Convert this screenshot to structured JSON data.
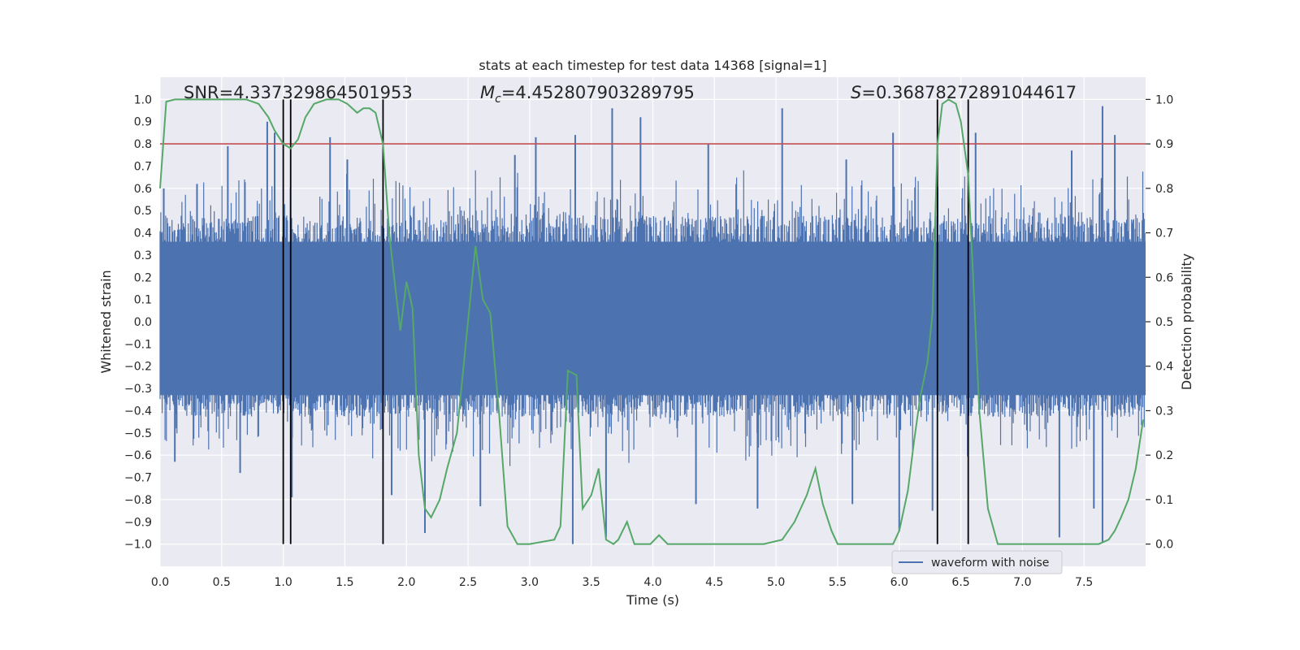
{
  "chart_data": {
    "type": "line",
    "title": "stats at each timestep for test data 14368 [signal=1]",
    "xlabel": "Time (s)",
    "ylabel": "Whitened strain",
    "ylabel_right": "Detection probability",
    "xlim": [
      0.0,
      8.0
    ],
    "ylim": [
      -1.1,
      1.1
    ],
    "ylim_right": [
      -0.05,
      1.05
    ],
    "x_ticks": [
      "0.0",
      "0.5",
      "1.0",
      "1.5",
      "2.0",
      "2.5",
      "3.0",
      "3.5",
      "4.0",
      "4.5",
      "5.0",
      "5.5",
      "6.0",
      "6.5",
      "7.0",
      "7.5"
    ],
    "y_ticks": [
      "1.0",
      "0.9",
      "0.8",
      "0.7",
      "0.6",
      "0.5",
      "0.4",
      "0.3",
      "0.2",
      "0.1",
      "0.0",
      "-0.1",
      "-0.2",
      "-0.3",
      "-0.4",
      "-0.5",
      "-0.6",
      "-0.7",
      "-0.8",
      "-0.9",
      "-1.0"
    ],
    "y_ticks_right": [
      "1.0",
      "0.9",
      "0.8",
      "0.7",
      "0.6",
      "0.5",
      "0.4",
      "0.3",
      "0.2",
      "0.1",
      "0.0"
    ],
    "grid": true,
    "legend": {
      "placement": "lower-right",
      "entries": [
        {
          "label": "waveform with noise",
          "color": "#4c72b0"
        }
      ]
    },
    "annotations": {
      "snr": "SNR=4.337329864501953",
      "mc_symbol": "M",
      "mc_sub": "c",
      "mc_value": "=4.452807903289795",
      "s_symbol": "S",
      "s_value": "=0.36878272891044617"
    },
    "threshold": {
      "value": 0.9,
      "axis": "right",
      "color": "#c44e52"
    },
    "vertical_lines": [
      1.0,
      1.06,
      1.81,
      6.31,
      6.56
    ],
    "waveform": {
      "label": "waveform with noise",
      "color": "#4c72b0",
      "note_core_envelope": [
        -0.35,
        0.4
      ],
      "peaks_up": [
        [
          0.03,
          0.6
        ],
        [
          0.3,
          0.62
        ],
        [
          0.55,
          0.79
        ],
        [
          0.87,
          0.9
        ],
        [
          0.93,
          0.85
        ],
        [
          1.38,
          0.83
        ],
        [
          1.52,
          0.73
        ],
        [
          2.88,
          0.75
        ],
        [
          3.05,
          0.83
        ],
        [
          3.37,
          0.84
        ],
        [
          3.67,
          0.96
        ],
        [
          3.9,
          0.92
        ],
        [
          4.45,
          0.8
        ],
        [
          5.05,
          0.96
        ],
        [
          5.57,
          0.73
        ],
        [
          5.95,
          0.85
        ],
        [
          6.62,
          0.85
        ],
        [
          7.4,
          0.77
        ],
        [
          7.65,
          0.97
        ],
        [
          7.75,
          0.84
        ]
      ],
      "peaks_down": [
        [
          0.12,
          -0.63
        ],
        [
          0.65,
          -0.68
        ],
        [
          1.07,
          -0.79
        ],
        [
          1.88,
          -0.78
        ],
        [
          2.15,
          -0.95
        ],
        [
          2.6,
          -0.83
        ],
        [
          3.35,
          -1.0
        ],
        [
          3.62,
          -0.97
        ],
        [
          4.35,
          -0.82
        ],
        [
          4.85,
          -0.84
        ],
        [
          5.62,
          -0.82
        ],
        [
          6.0,
          -0.94
        ],
        [
          6.27,
          -0.85
        ],
        [
          7.3,
          -0.97
        ],
        [
          7.58,
          -0.84
        ],
        [
          7.65,
          -0.99
        ]
      ]
    },
    "series": [
      {
        "name": "",
        "color": "#55a868",
        "axis": "right",
        "x": [
          0.0,
          0.05,
          0.12,
          0.3,
          0.5,
          0.7,
          0.8,
          0.88,
          0.93,
          1.0,
          1.06,
          1.12,
          1.18,
          1.25,
          1.35,
          1.45,
          1.52,
          1.6,
          1.65,
          1.7,
          1.75,
          1.81,
          1.86,
          1.9,
          1.95,
          2.0,
          2.05,
          2.1,
          2.15,
          2.2,
          2.27,
          2.33,
          2.41,
          2.46,
          2.51,
          2.56,
          2.62,
          2.68,
          2.75,
          2.82,
          2.9,
          3.0,
          3.2,
          3.25,
          3.31,
          3.38,
          3.43,
          3.5,
          3.56,
          3.62,
          3.68,
          3.72,
          3.79,
          3.85,
          3.92,
          3.98,
          4.05,
          4.12,
          4.2,
          4.3,
          4.5,
          4.7,
          4.9,
          5.05,
          5.15,
          5.25,
          5.32,
          5.38,
          5.45,
          5.5,
          5.6,
          5.8,
          5.95,
          6.0,
          6.07,
          6.12,
          6.17,
          6.23,
          6.27,
          6.31,
          6.35,
          6.4,
          6.46,
          6.5,
          6.56,
          6.6,
          6.65,
          6.72,
          6.8,
          6.85,
          6.95,
          7.3,
          7.5,
          7.62,
          7.7,
          7.75,
          7.8,
          7.86,
          7.92,
          7.98
        ],
        "y": [
          0.8,
          0.995,
          1.0,
          1.0,
          1.0,
          1.0,
          0.99,
          0.96,
          0.93,
          0.9,
          0.89,
          0.91,
          0.96,
          0.99,
          1.0,
          1.0,
          0.99,
          0.97,
          0.98,
          0.98,
          0.97,
          0.9,
          0.7,
          0.6,
          0.48,
          0.59,
          0.53,
          0.2,
          0.08,
          0.06,
          0.1,
          0.17,
          0.25,
          0.39,
          0.53,
          0.67,
          0.55,
          0.52,
          0.3,
          0.04,
          0.0,
          0.0,
          0.01,
          0.04,
          0.39,
          0.38,
          0.08,
          0.11,
          0.17,
          0.01,
          0.0,
          0.01,
          0.05,
          0.0,
          0.0,
          0.0,
          0.02,
          0.0,
          0.0,
          0.0,
          0.0,
          0.0,
          0.0,
          0.01,
          0.05,
          0.11,
          0.17,
          0.09,
          0.03,
          0.0,
          0.0,
          0.0,
          0.0,
          0.03,
          0.12,
          0.23,
          0.33,
          0.41,
          0.52,
          0.9,
          0.99,
          1.0,
          0.99,
          0.95,
          0.83,
          0.6,
          0.3,
          0.08,
          0.0,
          0.0,
          0.0,
          0.0,
          0.0,
          0.0,
          0.01,
          0.03,
          0.06,
          0.1,
          0.17,
          0.28
        ]
      }
    ]
  }
}
